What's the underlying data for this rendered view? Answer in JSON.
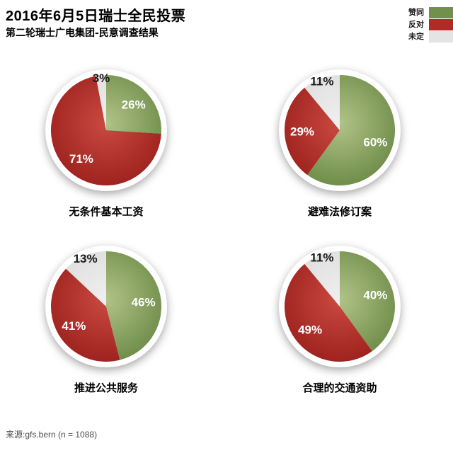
{
  "header": {
    "title": "2016年6月5日瑞士全民投票",
    "subtitle": "第二轮瑞士广电集团-民意调查结果"
  },
  "legend": {
    "items": [
      {
        "label": "赞同",
        "color": "#71904B"
      },
      {
        "label": "反对",
        "color": "#B02B27"
      },
      {
        "label": "未定",
        "color": "#E4E4E4"
      }
    ]
  },
  "colors": {
    "agree": {
      "center": "#b1c388",
      "edge": "#6d8b47"
    },
    "oppose": {
      "center": "#ca4a40",
      "edge": "#9d211e"
    },
    "undecided": {
      "center": "#efefef",
      "edge": "#dcdcdc"
    }
  },
  "chart_data": [
    {
      "type": "pie",
      "title": "无条件基本工资",
      "start_angle_deg": 0,
      "direction": "clockwise",
      "slices": [
        {
          "label": "赞同",
          "role": "agree",
          "value": 26
        },
        {
          "label": "反对",
          "role": "oppose",
          "value": 71
        },
        {
          "label": "未定",
          "role": "undecided",
          "value": 3
        }
      ]
    },
    {
      "type": "pie",
      "title": "避难法修订案",
      "start_angle_deg": 0,
      "direction": "clockwise",
      "slices": [
        {
          "label": "赞同",
          "role": "agree",
          "value": 60
        },
        {
          "label": "反对",
          "role": "oppose",
          "value": 29
        },
        {
          "label": "未定",
          "role": "undecided",
          "value": 11
        }
      ]
    },
    {
      "type": "pie",
      "title": "推进公共服务",
      "start_angle_deg": 0,
      "direction": "clockwise",
      "slices": [
        {
          "label": "赞同",
          "role": "agree",
          "value": 46
        },
        {
          "label": "反对",
          "role": "oppose",
          "value": 41
        },
        {
          "label": "未定",
          "role": "undecided",
          "value": 13
        }
      ]
    },
    {
      "type": "pie",
      "title": "合理的交通资助",
      "start_angle_deg": 0,
      "direction": "clockwise",
      "slices": [
        {
          "label": "赞同",
          "role": "agree",
          "value": 40
        },
        {
          "label": "反对",
          "role": "oppose",
          "value": 49
        },
        {
          "label": "未定",
          "role": "undecided",
          "value": 11
        }
      ]
    }
  ],
  "footer": {
    "source": "来源:gfs.bern (n = 1088)"
  }
}
